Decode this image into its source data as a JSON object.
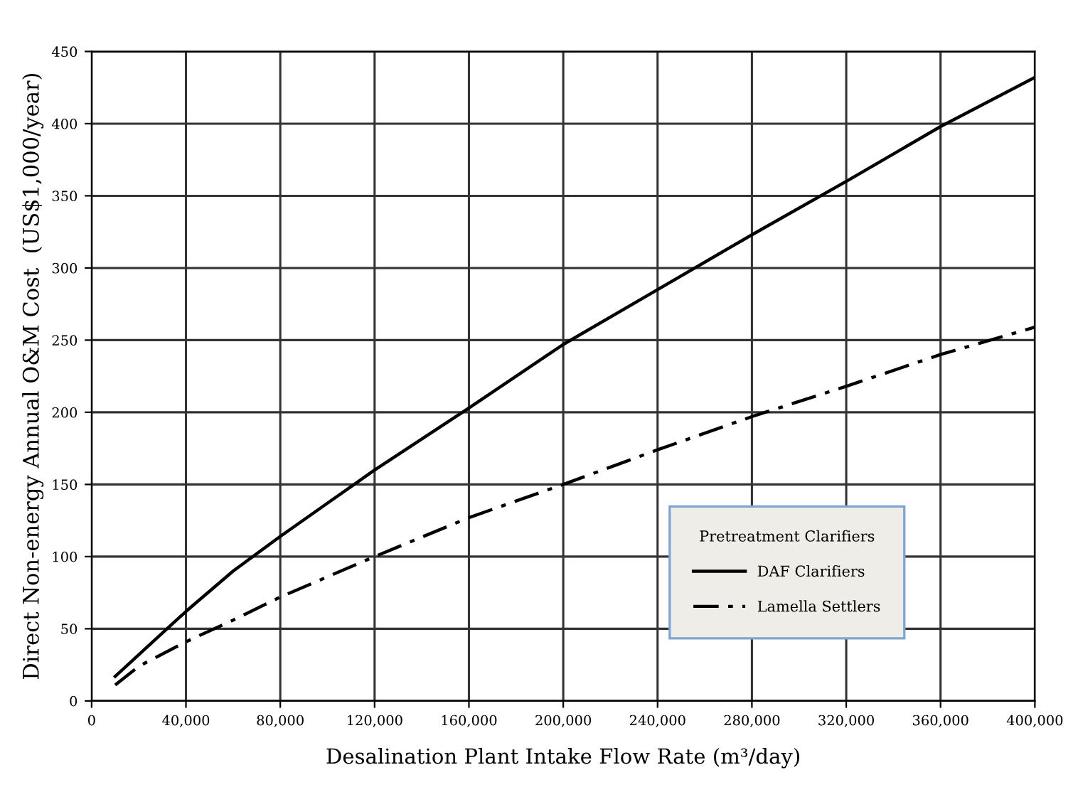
{
  "chart_data": {
    "type": "line",
    "xlabel": "Desalination Plant Intake Flow Rate (m³/day)",
    "ylabel": "Direct Non-energy Annual O&M Cost  (US$1,000/year)",
    "legend_title": "Pretreatment Clarifiers",
    "legend": "bottom right",
    "grid": true,
    "xlim": [
      0,
      400000
    ],
    "ylim": [
      0,
      450
    ],
    "xticks": [
      {
        "value": 0,
        "label": "0"
      },
      {
        "value": 40000,
        "label": "40,000"
      },
      {
        "value": 80000,
        "label": "80,000"
      },
      {
        "value": 120000,
        "label": "120,000"
      },
      {
        "value": 160000,
        "label": "160,000"
      },
      {
        "value": 200000,
        "label": "200,000"
      },
      {
        "value": 240000,
        "label": "240,000"
      },
      {
        "value": 280000,
        "label": "280,000"
      },
      {
        "value": 320000,
        "label": "320,000"
      },
      {
        "value": 360000,
        "label": "360,000"
      },
      {
        "value": 400000,
        "label": "400,000"
      }
    ],
    "yticks": [
      0,
      50,
      100,
      150,
      200,
      250,
      300,
      350,
      400,
      450
    ],
    "series": [
      {
        "name": "DAF Clarifiers",
        "color": "#000000",
        "line_style": "solid",
        "x": [
          10000,
          20000,
          30000,
          40000,
          60000,
          80000,
          100000,
          120000,
          160000,
          200000,
          240000,
          280000,
          320000,
          360000,
          400000
        ],
        "values": [
          17,
          32,
          47,
          62,
          90,
          114,
          137,
          160,
          203,
          247,
          285,
          323,
          360,
          398,
          432
        ]
      },
      {
        "name": "Lamella Settlers",
        "color": "#000000",
        "line_style": "dashdot",
        "x": [
          10000,
          20000,
          40000,
          60000,
          80000,
          100000,
          120000,
          160000,
          200000,
          240000,
          280000,
          320000,
          360000,
          400000
        ],
        "values": [
          11,
          24,
          41,
          56,
          72,
          86,
          100,
          127,
          150,
          174,
          197,
          218,
          240,
          259
        ]
      }
    ]
  }
}
